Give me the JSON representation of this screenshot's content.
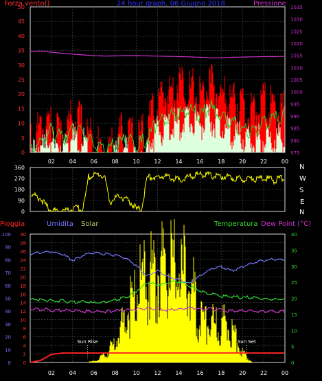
{
  "headers": {
    "wind": "Forza vento()",
    "title": "24 hour graph, 06 Giugno 2018",
    "pressure": "Pressione",
    "rain": "Pioggia",
    "humidity": "Umidita",
    "solar": "Solar",
    "temperature": "Temperatura",
    "dew_point": "Dew Point (°C)",
    "sun_rise": "Sun Rise",
    "sun_set": "Sun Set"
  },
  "directions": [
    "N",
    "W",
    "S",
    "E",
    "N"
  ],
  "colors": {
    "wind_header": "#ff3030",
    "title": "#3333ff",
    "pressure": "#cc33cc",
    "rain": "#ff2020",
    "humidity": "#7777ff",
    "solar": "#c8c870",
    "temperature": "#33dd33",
    "dew_point": "#cc33cc",
    "gust": "#ff0000",
    "speed": "#ddffdd",
    "avg": "#33cc33",
    "dir_line": "#ffff00",
    "solar_fill": "#ffff00",
    "humidity_line": "#7777ff",
    "axis": "#dddddd",
    "grid": "#555555"
  },
  "chart_data": [
    {
      "type": "line",
      "name": "wind-pressure",
      "x_ticks": [
        "02",
        "04",
        "06",
        "08",
        "10",
        "12",
        "14",
        "16",
        "18",
        "20",
        "22",
        "00"
      ],
      "y_left_ticks": [
        "0",
        "5",
        "10",
        "15",
        "20",
        "25",
        "30",
        "35",
        "40",
        "45",
        "50"
      ],
      "y_right_ticks": [
        "975",
        "980",
        "985",
        "990",
        "995",
        "1000",
        "1005",
        "1010",
        "1015",
        "1020",
        "1025",
        "1030",
        "1035"
      ],
      "ylim_left": [
        0,
        50
      ],
      "ylim_right": [
        975,
        1035
      ],
      "x_hours": [
        0,
        1,
        2,
        3,
        4,
        5,
        6,
        7,
        8,
        9,
        10,
        11,
        12,
        13,
        14,
        15,
        16,
        17,
        18,
        19,
        20,
        21,
        22,
        23,
        24
      ],
      "series": [
        {
          "key": "gust",
          "values": [
            7,
            12,
            14,
            10,
            16,
            13,
            7,
            3,
            8,
            12,
            7,
            12,
            21,
            24,
            28,
            26,
            23,
            27,
            23,
            22,
            20,
            16,
            22,
            18,
            18
          ]
        },
        {
          "key": "speed",
          "values": [
            3,
            6,
            7,
            5,
            8,
            7,
            3,
            1,
            3,
            5,
            3,
            6,
            10,
            12,
            13,
            14,
            13,
            14,
            12,
            10,
            8,
            6,
            8,
            8,
            7
          ]
        },
        {
          "key": "avg",
          "values": [
            3,
            5,
            9,
            6,
            10,
            8,
            4,
            1,
            4,
            6,
            4,
            6,
            12,
            14,
            15,
            16,
            14,
            17,
            13,
            12,
            9,
            8,
            12,
            13,
            14
          ]
        },
        {
          "key": "pressure",
          "values": [
            1016.5,
            1016.8,
            1016.3,
            1015.9,
            1015.5,
            1015.2,
            1014.9,
            1014.7,
            1014.8,
            1014.9,
            1014.9,
            1014.8,
            1014.7,
            1014.6,
            1014.5,
            1014.4,
            1014.2,
            1014.0,
            1014.0,
            1014.2,
            1014.3,
            1014.4,
            1014.5,
            1014.5,
            1014.6
          ]
        }
      ]
    },
    {
      "type": "line",
      "name": "wind-direction",
      "y_ticks": [
        "0",
        "90",
        "180",
        "270",
        "360"
      ],
      "ylim": [
        0,
        360
      ],
      "x_hours": [
        0,
        0.5,
        1,
        1.5,
        2,
        2.5,
        3,
        3.5,
        4,
        4.5,
        5,
        5.5,
        6,
        6.5,
        7,
        7.5,
        8,
        8.5,
        9,
        9.5,
        10,
        10.5,
        11,
        11.5,
        12,
        12.5,
        13,
        13.5,
        14,
        14.5,
        15,
        15.5,
        16,
        16.5,
        17,
        17.5,
        18,
        18.5,
        19,
        19.5,
        20,
        20.5,
        21,
        21.5,
        22,
        22.5,
        23,
        23.5,
        24
      ],
      "values": [
        150,
        145,
        120,
        60,
        25,
        20,
        22,
        25,
        35,
        40,
        40,
        300,
        310,
        320,
        300,
        95,
        120,
        140,
        110,
        90,
        30,
        35,
        290,
        300,
        280,
        310,
        300,
        285,
        270,
        285,
        300,
        310,
        320,
        315,
        310,
        300,
        305,
        300,
        295,
        285,
        280,
        290,
        285,
        275,
        290,
        280,
        270,
        285,
        275
      ]
    },
    {
      "type": "line",
      "name": "rain-humidity-solar-temp",
      "x_ticks": [
        "02",
        "04",
        "06",
        "08",
        "10",
        "12",
        "14",
        "16",
        "18",
        "20",
        "22",
        "00"
      ],
      "y_rain_ticks": [
        "0",
        "2",
        "4",
        "6",
        "8",
        "10",
        "12",
        "14",
        "16",
        "18",
        "20",
        "22",
        "24",
        "26",
        "28",
        "30"
      ],
      "y_hum_ticks": [
        "0",
        "10",
        "20",
        "30",
        "40",
        "50",
        "60",
        "70",
        "80",
        "90",
        "100"
      ],
      "y_temp_ticks": [
        "0",
        "5",
        "10",
        "15",
        "20",
        "25",
        "30",
        "35",
        "40"
      ],
      "ylim_rain": [
        0,
        30
      ],
      "ylim_humidity": [
        0,
        100
      ],
      "ylim_temperature": [
        0,
        40
      ],
      "x_hours": [
        0,
        1,
        2,
        3,
        4,
        5,
        6,
        7,
        8,
        9,
        10,
        11,
        12,
        13,
        14,
        15,
        16,
        17,
        18,
        19,
        20,
        21,
        22,
        23,
        24
      ],
      "rain": [
        0,
        0.5,
        1.9,
        2.2,
        2.2,
        2.2,
        2.2,
        2.2,
        2.2,
        2.2,
        2.2,
        2.2,
        2.2,
        2.2,
        2.2,
        2.2,
        2.2,
        2.2,
        2.2,
        2.2,
        2.2,
        2.2,
        2.2,
        2.2,
        2.2
      ],
      "humidity": [
        85,
        86,
        87,
        85,
        80,
        84,
        86,
        85,
        84,
        82,
        76,
        68,
        72,
        67,
        65,
        62,
        68,
        73,
        75,
        72,
        75,
        78,
        80,
        81,
        80
      ],
      "temperature": [
        20,
        19.8,
        19.5,
        19.4,
        19,
        19.3,
        18.8,
        19,
        19.7,
        20.5,
        22.5,
        25,
        24.5,
        25,
        25.5,
        24,
        22.5,
        21.5,
        21,
        20.7,
        20.5,
        20.5,
        20,
        20,
        20
      ],
      "dew_point": [
        17,
        16.8,
        16.6,
        16.4,
        16.5,
        16.2,
        16.2,
        16.1,
        16.3,
        16.5,
        16.9,
        17,
        17.1,
        16.5,
        17,
        17.2,
        16.9,
        17,
        16.5,
        16.3,
        16.3,
        16.3,
        16,
        16.2,
        16.2
      ],
      "solar": [
        0,
        0,
        0,
        0,
        0,
        0,
        0.4,
        2,
        6,
        14,
        22,
        24,
        27,
        28,
        27,
        26,
        12,
        11,
        12,
        10,
        3,
        0,
        0,
        0,
        0
      ],
      "sun_rise_hour": 5.4,
      "sun_set_hour": 20.4
    }
  ]
}
